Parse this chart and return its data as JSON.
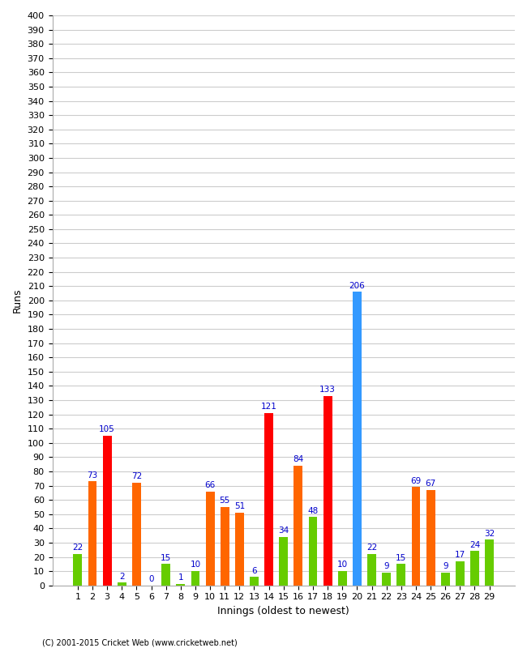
{
  "title": "",
  "xlabel": "Innings (oldest to newest)",
  "ylabel": "Runs",
  "footer": "(C) 2001-2015 Cricket Web (www.cricketweb.net)",
  "ylim": [
    0,
    400
  ],
  "ytick_step": 10,
  "scores": [
    22,
    73,
    105,
    2,
    72,
    0,
    15,
    1,
    10,
    66,
    55,
    51,
    6,
    121,
    34,
    84,
    48,
    133,
    10,
    206,
    22,
    9,
    15,
    69,
    67,
    9,
    17,
    24,
    32
  ],
  "colors": [
    "#66cc00",
    "#ff6600",
    "#ff0000",
    "#66cc00",
    "#ff6600",
    "#66cc00",
    "#66cc00",
    "#66cc00",
    "#66cc00",
    "#ff6600",
    "#ff6600",
    "#ff6600",
    "#66cc00",
    "#ff0000",
    "#66cc00",
    "#ff6600",
    "#66cc00",
    "#ff0000",
    "#66cc00",
    "#3399ff",
    "#66cc00",
    "#66cc00",
    "#66cc00",
    "#ff6600",
    "#ff6600",
    "#66cc00",
    "#66cc00",
    "#66cc00",
    "#66cc00"
  ],
  "background_color": "#ffffff",
  "grid_color": "#cccccc",
  "label_color": "#0000cc",
  "axis_fontsize": 9,
  "tick_fontsize": 8,
  "label_fontsize": 7.5
}
